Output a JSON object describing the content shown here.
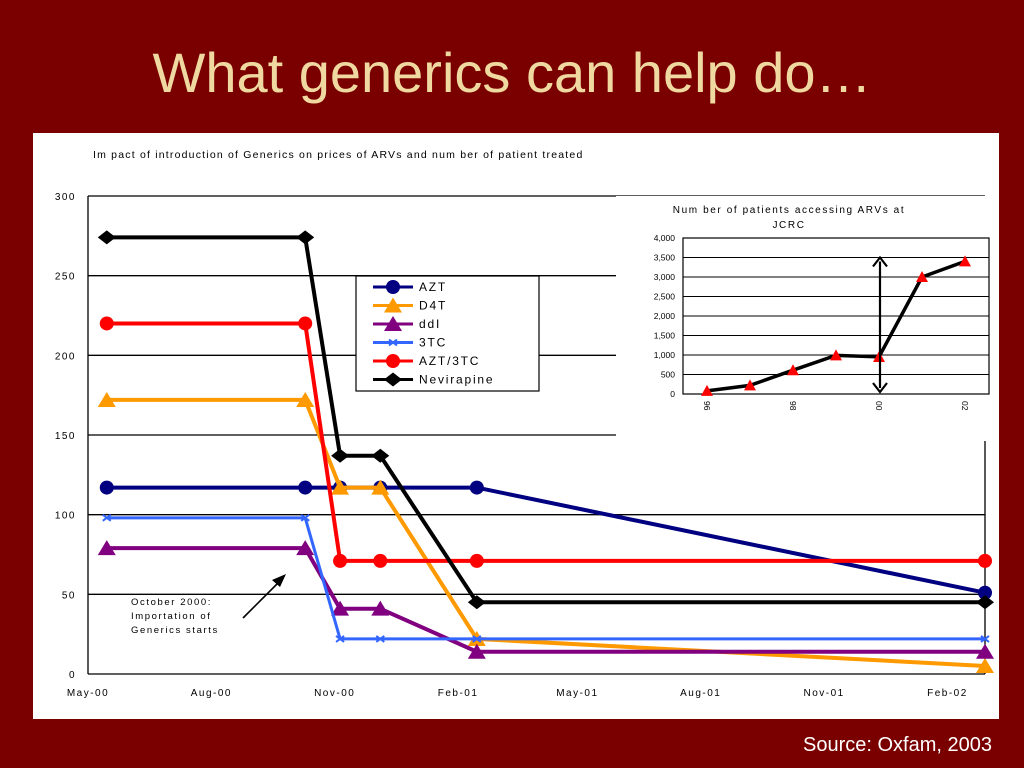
{
  "slide": {
    "title": "What generics can help do…",
    "source": "Source: Oxfam, 2003"
  },
  "colors": {
    "background": "#7a0000",
    "title": "#f0d9a0",
    "AZT": "#000080",
    "D4T": "#ff9900",
    "ddI": "#800080",
    "3TC": "#3366ff",
    "AZT/3TC": "#ff0000",
    "Nevirapine": "#000000",
    "inset_line": "#000000",
    "inset_marker": "#ff0000"
  },
  "chart_data": [
    {
      "type": "line",
      "title": "Im pact of introduction of Generics on prices of ARVs and num ber of patient treated",
      "x_ticks": [
        "May-00",
        "Aug-00",
        "Nov-00",
        "Feb-01",
        "May-01",
        "Aug-01",
        "Nov-01",
        "Feb-02"
      ],
      "x_range": [
        "2000-05",
        "2002-03"
      ],
      "ylim": [
        0,
        300
      ],
      "y_ticks": [
        0,
        50,
        100,
        150,
        200,
        250,
        300
      ],
      "grid": true,
      "legend_position": "top-center",
      "annotation": [
        "October 2000:",
        "Importation of",
        "Generics starts"
      ],
      "series": [
        {
          "name": "AZT",
          "marker": "circle",
          "x": [
            "2000-05-15",
            "2000-10-10",
            "2000-11-05",
            "2000-12-05",
            "2001-02-15",
            "2002-03-01"
          ],
          "values": [
            117,
            117,
            117,
            117,
            117,
            51
          ]
        },
        {
          "name": "D4T",
          "marker": "triangle",
          "x": [
            "2000-05-15",
            "2000-10-10",
            "2000-11-05",
            "2000-12-05",
            "2001-02-15",
            "2002-03-01"
          ],
          "values": [
            172,
            172,
            117,
            117,
            22,
            5
          ]
        },
        {
          "name": "ddI",
          "marker": "triangle",
          "x": [
            "2000-05-15",
            "2000-10-10",
            "2000-11-05",
            "2000-12-05",
            "2001-02-15",
            "2002-03-01"
          ],
          "values": [
            79,
            79,
            41,
            41,
            14,
            14
          ]
        },
        {
          "name": "3TC",
          "marker": "cross",
          "x": [
            "2000-05-15",
            "2000-10-10",
            "2000-11-05",
            "2000-12-05",
            "2001-02-15",
            "2002-03-01"
          ],
          "values": [
            98,
            98,
            22,
            22,
            22,
            22
          ]
        },
        {
          "name": "AZT/3TC",
          "marker": "circle",
          "x": [
            "2000-05-15",
            "2000-10-10",
            "2000-11-05",
            "2000-12-05",
            "2001-02-15",
            "2002-03-01"
          ],
          "values": [
            220,
            220,
            71,
            71,
            71,
            71
          ]
        },
        {
          "name": "Nevirapine",
          "marker": "diamond",
          "x": [
            "2000-05-15",
            "2000-10-10",
            "2000-11-05",
            "2000-12-05",
            "2001-02-15",
            "2002-03-01"
          ],
          "values": [
            274,
            274,
            137,
            137,
            45,
            45
          ]
        }
      ]
    },
    {
      "type": "line",
      "title": "Num ber of patients accessing ARVs at JCRC",
      "categories": [
        "96",
        "97",
        "98",
        "99",
        "00",
        "01",
        "02"
      ],
      "x_tick_labels": [
        "96",
        "",
        "98",
        "",
        "00",
        "",
        "02"
      ],
      "values": [
        80,
        220,
        610,
        990,
        950,
        3000,
        3400
      ],
      "ylim": [
        0,
        4000
      ],
      "y_ticks": [
        "0",
        "500",
        "1,000",
        "1,500",
        "2,000",
        "2,500",
        "3,000",
        "3,500",
        "4,000"
      ],
      "grid": true,
      "marker": "triangle",
      "annotation": "double-headed arrow at 00 spanning 0 to 3,500"
    }
  ]
}
